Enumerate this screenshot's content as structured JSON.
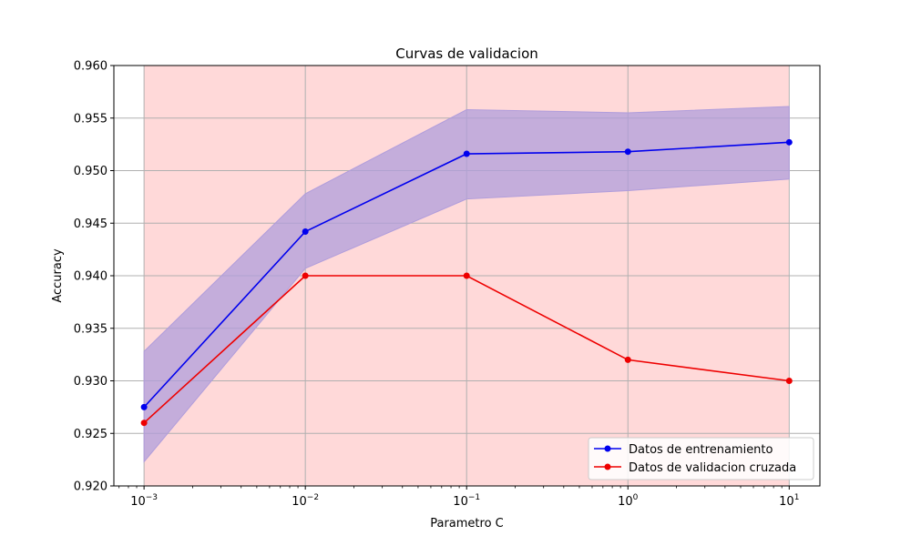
{
  "chart_data": {
    "type": "line",
    "title": "Curvas de validacion",
    "xlabel": "Parametro C",
    "ylabel": "Accuracy",
    "x_scale": "log",
    "x": [
      0.001,
      0.01,
      0.1,
      1,
      10
    ],
    "x_tick_labels": [
      {
        "base": "10",
        "exp": "−3"
      },
      {
        "base": "10",
        "exp": "−2"
      },
      {
        "base": "10",
        "exp": "−1"
      },
      {
        "base": "10",
        "exp": "0"
      },
      {
        "base": "10",
        "exp": "1"
      }
    ],
    "xlim": [
      0.00065,
      15.5
    ],
    "ylim": [
      0.92,
      0.96
    ],
    "y_ticks": [
      "0.920",
      "0.925",
      "0.930",
      "0.935",
      "0.940",
      "0.945",
      "0.950",
      "0.955",
      "0.960"
    ],
    "grid": true,
    "legend_position": "lower-right",
    "background_span": {
      "from": 0.001,
      "to": 10,
      "color": "#ffd9d9"
    },
    "series": [
      {
        "name": "Datos de entrenamiento",
        "color": "#0000ee",
        "band_color": "#b09ddb",
        "values": [
          0.9275,
          0.9442,
          0.9516,
          0.9518,
          0.9527
        ],
        "band_upper": [
          0.9328,
          0.9478,
          0.9558,
          0.9555,
          0.9561
        ],
        "band_lower": [
          0.9223,
          0.9407,
          0.9473,
          0.9481,
          0.9492
        ]
      },
      {
        "name": "Datos de validacion cruzada",
        "color": "#ee0000",
        "values": [
          0.926,
          0.94,
          0.94,
          0.932,
          0.93
        ]
      }
    ]
  }
}
